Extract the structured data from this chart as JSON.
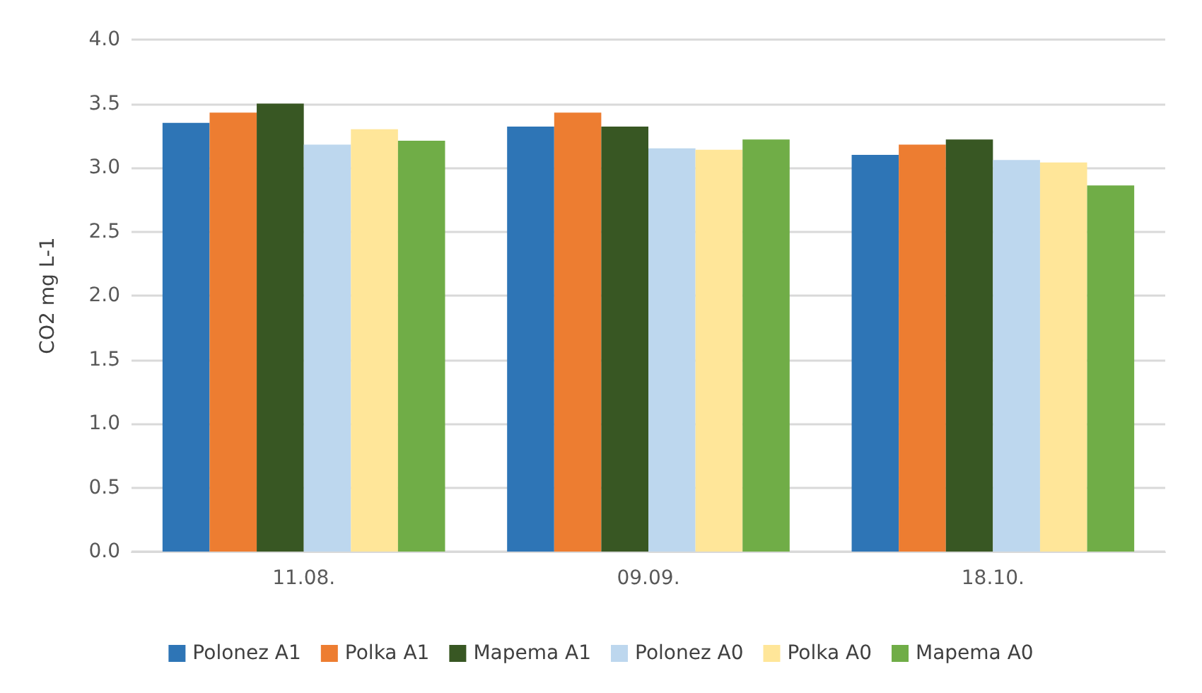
{
  "chart_data": {
    "type": "bar",
    "ylabel": "CO2 mg L-1",
    "categories": [
      "11.08.",
      "09.09.",
      "18.10."
    ],
    "series": [
      {
        "name": "Polonez A1",
        "color": "#2e75b6",
        "values": [
          3.35,
          3.32,
          3.1
        ]
      },
      {
        "name": "Polka A1",
        "color": "#ed7d31",
        "values": [
          3.43,
          3.43,
          3.18
        ]
      },
      {
        "name": "Mapema A1",
        "color": "#385723",
        "values": [
          3.5,
          3.32,
          3.22
        ]
      },
      {
        "name": "Polonez A0",
        "color": "#bdd7ee",
        "values": [
          3.18,
          3.15,
          3.06
        ]
      },
      {
        "name": "Polka A0",
        "color": "#ffe699",
        "values": [
          3.3,
          3.14,
          3.04
        ]
      },
      {
        "name": "Mapema A0",
        "color": "#70ad47",
        "values": [
          3.21,
          3.22,
          2.86
        ]
      }
    ],
    "ylim": [
      0,
      4
    ],
    "yticks": [
      {
        "value": 0,
        "label": "0.0"
      },
      0.5,
      {
        "value": 1,
        "label": "1.0"
      },
      1.5,
      {
        "value": 2,
        "label": "2.0"
      },
      2.5,
      {
        "value": 3,
        "label": "3.0"
      },
      3.5,
      {
        "value": 4,
        "label": "4.0"
      }
    ],
    "grid": "y",
    "legend": "bottom"
  }
}
